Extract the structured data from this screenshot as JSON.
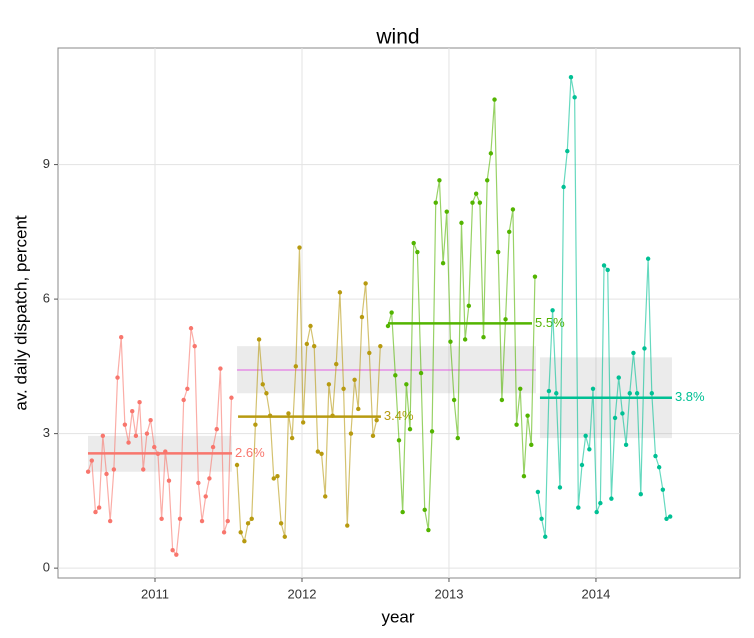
{
  "chart_data": {
    "type": "line",
    "title": "wind",
    "xlabel": "year",
    "ylabel": "av. daily dispatch, percent",
    "xlim": [
      2010.34,
      2014.98
    ],
    "ylim": [
      -0.22,
      11.6
    ],
    "xticks": [
      2011,
      2012,
      2013,
      2014
    ],
    "yticks": [
      0,
      3,
      6,
      9
    ],
    "grid": true,
    "overall": {
      "value": 4.42,
      "band": [
        3.9,
        4.95
      ],
      "x": [
        2011.558,
        2013.592
      ],
      "color": "#e35fe3"
    },
    "series": [
      {
        "color": "#f8766d",
        "mean": 2.56,
        "value_label": "2.6%",
        "band": [
          2.15,
          2.95
        ],
        "mean_x": [
          2010.544,
          2011.524
        ],
        "x": [
          2010.545,
          2010.57,
          2010.595,
          2010.62,
          2010.645,
          2010.67,
          2010.695,
          2010.72,
          2010.745,
          2010.77,
          2010.795,
          2010.82,
          2010.845,
          2010.87,
          2010.895,
          2010.92,
          2010.945,
          2010.97,
          2010.995,
          2011.02,
          2011.045,
          2011.07,
          2011.095,
          2011.12,
          2011.145,
          2011.17,
          2011.195,
          2011.22,
          2011.245,
          2011.27,
          2011.295,
          2011.32,
          2011.345,
          2011.37,
          2011.395,
          2011.42,
          2011.445,
          2011.47,
          2011.495,
          2011.52
        ],
        "values": [
          2.15,
          2.4,
          1.25,
          1.35,
          2.95,
          2.1,
          1.05,
          2.2,
          4.25,
          5.15,
          3.2,
          2.8,
          3.5,
          2.95,
          3.7,
          2.2,
          3.0,
          3.3,
          2.7,
          2.55,
          1.1,
          2.6,
          1.95,
          0.4,
          0.3,
          1.1,
          3.75,
          4.0,
          5.35,
          4.95,
          1.9,
          1.05,
          1.6,
          2.0,
          2.7,
          3.1,
          4.45,
          0.8,
          1.05,
          3.8
        ]
      },
      {
        "color": "#b79a10",
        "mean": 3.38,
        "value_label": "3.4%",
        "mean_x": [
          2011.565,
          2012.537
        ],
        "x": [
          2011.558,
          2011.583,
          2011.608,
          2011.633,
          2011.658,
          2011.683,
          2011.708,
          2011.733,
          2011.758,
          2011.783,
          2011.808,
          2011.833,
          2011.858,
          2011.883,
          2011.908,
          2011.933,
          2011.958,
          2011.983,
          2012.008,
          2012.033,
          2012.058,
          2012.083,
          2012.108,
          2012.133,
          2012.158,
          2012.183,
          2012.208,
          2012.233,
          2012.258,
          2012.283,
          2012.308,
          2012.333,
          2012.358,
          2012.383,
          2012.408,
          2012.433,
          2012.458,
          2012.483,
          2012.508,
          2012.533
        ],
        "values": [
          2.3,
          0.8,
          0.6,
          1.0,
          1.1,
          3.2,
          5.1,
          4.1,
          3.9,
          3.4,
          2.0,
          2.05,
          1.0,
          0.7,
          3.45,
          2.9,
          4.5,
          7.15,
          3.25,
          5.0,
          5.4,
          4.95,
          2.6,
          2.55,
          1.6,
          4.1,
          3.4,
          4.55,
          6.15,
          4.0,
          0.95,
          3.0,
          4.2,
          3.55,
          5.6,
          6.35,
          4.8,
          2.95,
          3.3,
          4.95
        ]
      },
      {
        "color": "#53b400",
        "mean": 5.46,
        "value_label": "5.5%",
        "mean_x": [
          2012.585,
          2013.565
        ],
        "x": [
          2012.585,
          2012.61,
          2012.635,
          2012.66,
          2012.685,
          2012.71,
          2012.735,
          2012.76,
          2012.785,
          2012.81,
          2012.835,
          2012.86,
          2012.885,
          2012.91,
          2012.935,
          2012.96,
          2012.985,
          2013.01,
          2013.035,
          2013.06,
          2013.085,
          2013.11,
          2013.135,
          2013.16,
          2013.185,
          2013.21,
          2013.235,
          2013.26,
          2013.285,
          2013.31,
          2013.335,
          2013.36,
          2013.385,
          2013.41,
          2013.435,
          2013.46,
          2013.485,
          2013.51,
          2013.535,
          2013.56,
          2013.585
        ],
        "values": [
          5.4,
          5.7,
          4.3,
          2.85,
          1.25,
          4.1,
          3.1,
          7.25,
          7.05,
          4.35,
          1.3,
          0.85,
          3.05,
          8.15,
          8.65,
          6.8,
          7.95,
          5.05,
          3.75,
          2.9,
          7.7,
          5.1,
          5.85,
          8.15,
          8.35,
          8.15,
          5.15,
          8.65,
          9.25,
          10.45,
          7.05,
          3.75,
          5.55,
          7.5,
          8.0,
          3.2,
          4.0,
          2.05,
          3.4,
          2.75,
          6.5
        ]
      },
      {
        "color": "#00c094",
        "mean": 3.8,
        "value_label": "3.8%",
        "band": [
          2.9,
          4.7
        ],
        "mean_x": [
          2013.619,
          2014.517
        ],
        "x": [
          2013.605,
          2013.63,
          2013.655,
          2013.68,
          2013.705,
          2013.73,
          2013.755,
          2013.78,
          2013.805,
          2013.83,
          2013.855,
          2013.88,
          2013.905,
          2013.93,
          2013.955,
          2013.98,
          2014.005,
          2014.03,
          2014.055,
          2014.08,
          2014.105,
          2014.13,
          2014.155,
          2014.18,
          2014.205,
          2014.23,
          2014.255,
          2014.28,
          2014.305,
          2014.33,
          2014.355,
          2014.38,
          2014.405,
          2014.43,
          2014.455,
          2014.48,
          2014.505
        ],
        "values": [
          1.7,
          1.1,
          0.7,
          3.95,
          5.75,
          3.9,
          1.8,
          8.5,
          9.3,
          10.95,
          10.5,
          1.35,
          2.3,
          2.95,
          2.65,
          4.0,
          1.25,
          1.45,
          6.75,
          6.65,
          1.55,
          3.35,
          4.25,
          3.45,
          2.75,
          3.9,
          4.8,
          3.9,
          1.65,
          4.9,
          6.9,
          3.9,
          2.5,
          2.25,
          1.75,
          1.1,
          1.15
        ]
      }
    ]
  }
}
